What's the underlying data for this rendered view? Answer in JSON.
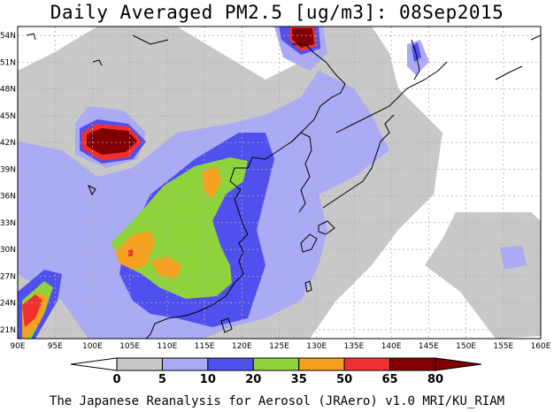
{
  "title": "Daily Averaged PM2.5 [ug/m3]: 08Sep2015",
  "footer": "The Japanese Reanalysis for Aerosol (JRAero) v1.0 MRI/KU_RIAM",
  "map": {
    "lon_range": [
      90,
      160
    ],
    "lat_range": [
      20,
      55
    ],
    "lon_ticks": [
      "90E",
      "95E",
      "100E",
      "105E",
      "110E",
      "115E",
      "120E",
      "125E",
      "130E",
      "135E",
      "140E",
      "145E",
      "150E",
      "155E",
      "160E"
    ],
    "lat_ticks": [
      "21N",
      "24N",
      "27N",
      "30N",
      "33N",
      "36N",
      "39N",
      "42N",
      "45N",
      "48N",
      "51N",
      "54N"
    ],
    "colors": {
      "land_line": "#000000",
      "grid": "#b0b0b0",
      "c5": "#c8c8c8",
      "c10": "#aaaaf5",
      "c20": "#5050ee",
      "c35": "#8ed23c",
      "c50": "#f5a01e",
      "c65": "#f03030",
      "c80": "#800000"
    }
  },
  "legend": {
    "labels": [
      "0",
      "5",
      "10",
      "20",
      "35",
      "50",
      "65",
      "80"
    ],
    "colors": [
      "#ffffff",
      "#c8c8c8",
      "#aaaaf5",
      "#5050ee",
      "#8ed23c",
      "#f5a01e",
      "#f03030",
      "#800000"
    ]
  }
}
